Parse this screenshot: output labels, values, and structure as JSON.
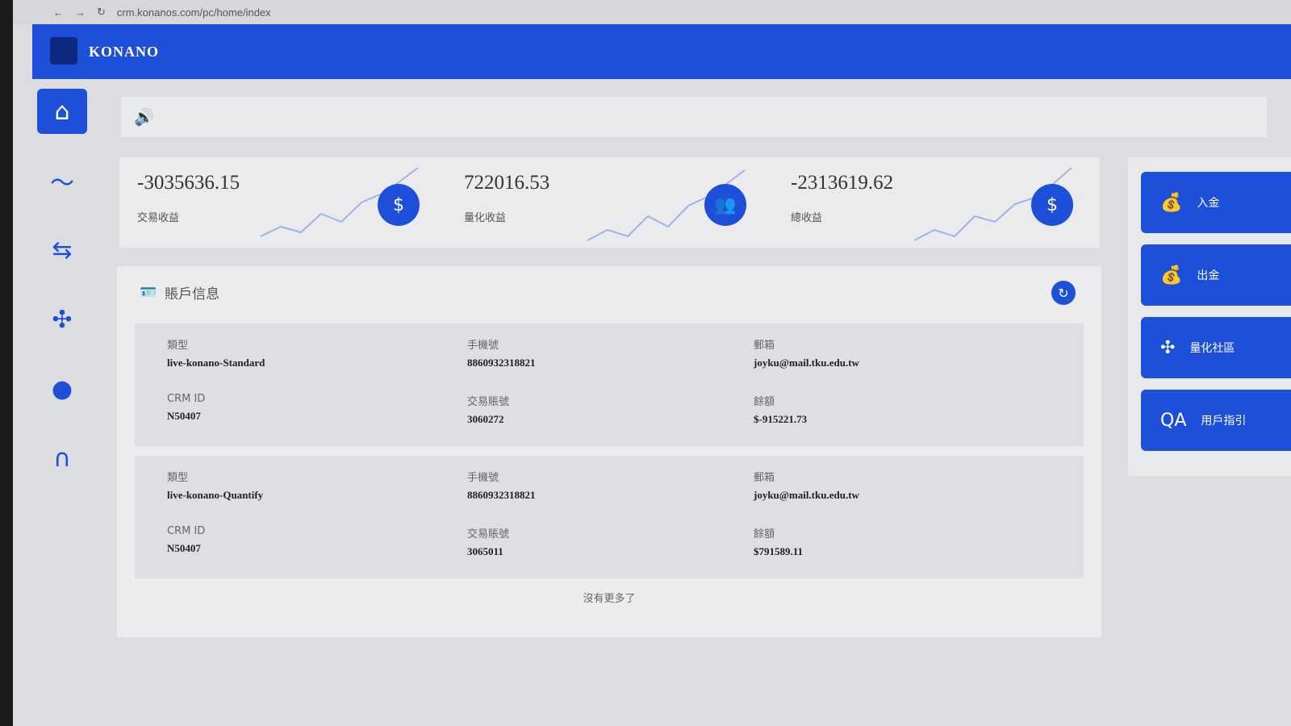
{
  "browser": {
    "url": "crm.konanos.com/pc/home/index"
  },
  "header": {
    "brand": "KONANO"
  },
  "sidebar": {
    "items": [
      {
        "icon": "home-icon",
        "glyph": "⌂"
      },
      {
        "icon": "chart-icon",
        "glyph": "〜"
      },
      {
        "icon": "exchange-icon",
        "glyph": "⇆"
      },
      {
        "icon": "network-icon",
        "glyph": "✣"
      },
      {
        "icon": "user-icon",
        "glyph": "●"
      },
      {
        "icon": "headset-icon",
        "glyph": "∩"
      }
    ]
  },
  "topbar": {
    "icon": "speaker-icon",
    "glyph": "🔊"
  },
  "stats": [
    {
      "value": "-3035636.15",
      "label": "交易收益",
      "icon": "money-hand-icon",
      "glyph": "$"
    },
    {
      "value": "722016.53",
      "label": "量化收益",
      "icon": "user-coins-icon",
      "glyph": "👥"
    },
    {
      "value": "-2313619.62",
      "label": "總收益",
      "icon": "coins-icon",
      "glyph": "$"
    }
  ],
  "account": {
    "title": "賬戶信息",
    "footer": "沒有更多了",
    "cards": [
      {
        "type_label": "類型",
        "type": "live-konano-Standard",
        "phone_label": "手機號",
        "phone": "8860932318821",
        "email_label": "郵箱",
        "email": "joyku@mail.tku.edu.tw",
        "crm_label": "CRM ID",
        "crm": "N50407",
        "acct_label": "交易賬號",
        "acct": "3060272",
        "bal_label": "餘額",
        "bal": "$-915221.73"
      },
      {
        "type_label": "類型",
        "type": "live-konano-Quantify",
        "phone_label": "手機號",
        "phone": "8860932318821",
        "email_label": "郵箱",
        "email": "joyku@mail.tku.edu.tw",
        "crm_label": "CRM ID",
        "crm": "N50407",
        "acct_label": "交易賬號",
        "acct": "3065011",
        "bal_label": "餘額",
        "bal": "$791589.11"
      }
    ]
  },
  "actions": [
    {
      "label": "入金",
      "icon": "money-bag-icon"
    },
    {
      "label": "出金",
      "icon": "money-bag-icon"
    },
    {
      "label": "量化社區",
      "icon": "network-icon"
    },
    {
      "label": "用戶指引",
      "icon": "qa-icon"
    }
  ],
  "colors": {
    "primary": "#1d4fd8"
  }
}
